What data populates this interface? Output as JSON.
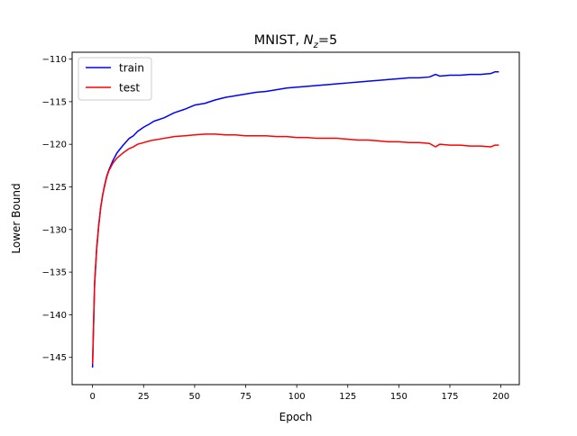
{
  "chart_data": {
    "type": "line",
    "title": "MNIST, N_z=5",
    "title_parts": {
      "main": "MNIST, ",
      "var": "N",
      "sub": "z",
      "rest": "=5"
    },
    "xlabel": "Epoch",
    "ylabel": "Lower Bound",
    "xlim": [
      -10,
      209
    ],
    "ylim": [
      -148.2,
      -109.2
    ],
    "xticks": [
      0,
      25,
      50,
      75,
      100,
      125,
      150,
      175,
      200
    ],
    "xtick_labels": [
      "0",
      "25",
      "50",
      "75",
      "100",
      "125",
      "150",
      "175",
      "200"
    ],
    "yticks": [
      -145,
      -140,
      -135,
      -130,
      -125,
      -120,
      -115,
      -110
    ],
    "ytick_labels": [
      "−145",
      "−140",
      "−135",
      "−130",
      "−125",
      "−120",
      "−115",
      "−110"
    ],
    "grid": false,
    "legend_position": "top-left",
    "series": [
      {
        "name": "train",
        "color": "#0000ff",
        "x": [
          0,
          1,
          2,
          3,
          4,
          5,
          6,
          7,
          8,
          10,
          12,
          15,
          18,
          20,
          22,
          25,
          28,
          30,
          35,
          40,
          45,
          50,
          55,
          60,
          65,
          70,
          75,
          80,
          85,
          90,
          95,
          100,
          105,
          110,
          115,
          120,
          125,
          130,
          135,
          140,
          145,
          150,
          155,
          160,
          165,
          168,
          170,
          175,
          180,
          185,
          190,
          195,
          197,
          199
        ],
        "y": [
          -146.2,
          -136.5,
          -132.4,
          -129.6,
          -127.4,
          -125.9,
          -124.7,
          -123.7,
          -123.0,
          -121.9,
          -121.0,
          -120.1,
          -119.3,
          -119.0,
          -118.5,
          -118.0,
          -117.6,
          -117.3,
          -116.9,
          -116.3,
          -115.9,
          -115.4,
          -115.2,
          -114.8,
          -114.5,
          -114.3,
          -114.1,
          -113.9,
          -113.8,
          -113.6,
          -113.4,
          -113.3,
          -113.2,
          -113.1,
          -113.0,
          -112.9,
          -112.8,
          -112.7,
          -112.6,
          -112.5,
          -112.4,
          -112.3,
          -112.2,
          -112.2,
          -112.1,
          -111.8,
          -112.0,
          -111.9,
          -111.9,
          -111.8,
          -111.8,
          -111.7,
          -111.5,
          -111.5
        ]
      },
      {
        "name": "test",
        "color": "#ff0000",
        "x": [
          0,
          1,
          2,
          3,
          4,
          5,
          6,
          7,
          8,
          10,
          12,
          15,
          18,
          20,
          22,
          25,
          28,
          30,
          35,
          40,
          45,
          50,
          55,
          60,
          65,
          70,
          75,
          80,
          85,
          90,
          95,
          100,
          105,
          110,
          115,
          120,
          125,
          130,
          135,
          140,
          145,
          150,
          155,
          160,
          165,
          168,
          170,
          175,
          180,
          185,
          190,
          195,
          197,
          199
        ],
        "y": [
          -145.8,
          -136.3,
          -132.2,
          -129.5,
          -127.4,
          -125.9,
          -124.8,
          -123.8,
          -123.1,
          -122.2,
          -121.6,
          -121.0,
          -120.5,
          -120.3,
          -120.0,
          -119.8,
          -119.6,
          -119.5,
          -119.3,
          -119.1,
          -119.0,
          -118.9,
          -118.8,
          -118.8,
          -118.9,
          -118.9,
          -119.0,
          -119.0,
          -119.0,
          -119.1,
          -119.1,
          -119.2,
          -119.2,
          -119.3,
          -119.3,
          -119.3,
          -119.4,
          -119.5,
          -119.5,
          -119.6,
          -119.7,
          -119.7,
          -119.8,
          -119.8,
          -119.9,
          -120.3,
          -120.0,
          -120.1,
          -120.1,
          -120.2,
          -120.2,
          -120.3,
          -120.1,
          -120.1
        ]
      }
    ]
  }
}
